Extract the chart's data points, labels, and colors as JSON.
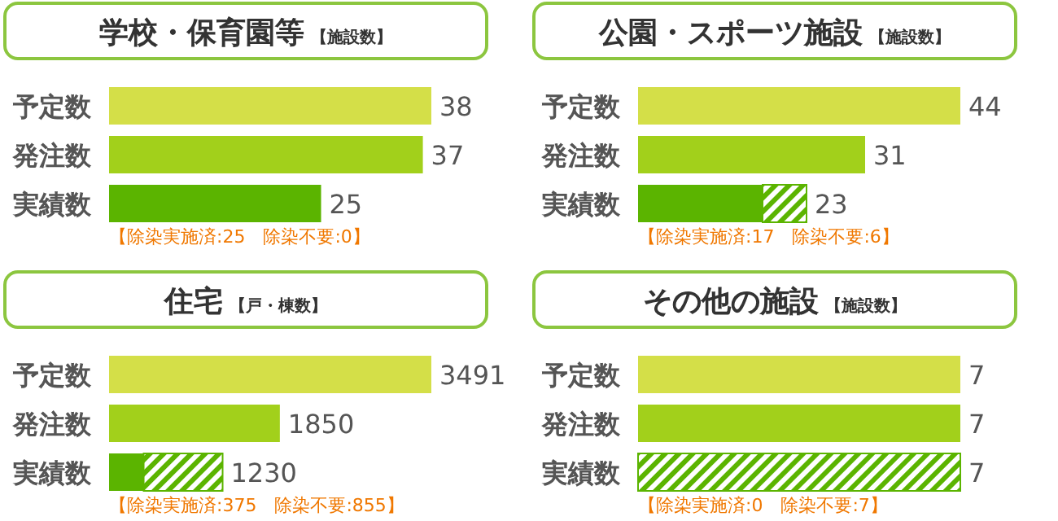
{
  "chart_data": [
    {
      "type": "bar",
      "orientation": "horizontal",
      "stacked": true,
      "title": "学校・保育園等",
      "subtitle": "【施設数】",
      "categories": [
        "予定数",
        "発注数",
        "実績数"
      ],
      "series": [
        {
          "color": "#d4df48",
          "values": [
            38,
            null,
            null
          ],
          "value_labels": [
            "38",
            null,
            null
          ]
        },
        {
          "color": "#a2d01b",
          "values": [
            null,
            37,
            null
          ],
          "value_labels": [
            null,
            "37",
            null
          ]
        },
        {
          "color": "#5bb400",
          "values": [
            null,
            null,
            25
          ]
        },
        {
          "color": "#5bb400",
          "values": [
            null,
            null,
            0
          ]
        }
      ],
      "totals": [
        null,
        null,
        "25"
      ],
      "annotations": [
        "【除染実施済:25　除染不要:0】"
      ]
    },
    {
      "type": "bar",
      "orientation": "horizontal",
      "stacked": true,
      "title": "公園・スポーツ施設",
      "subtitle": "【施設数】",
      "categories": [
        "予定数",
        "発注数",
        "実績数"
      ],
      "series": [
        {
          "color": "#d4df48",
          "values": [
            44,
            null,
            null
          ],
          "value_labels": [
            "44",
            null,
            null
          ]
        },
        {
          "color": "#a2d01b",
          "values": [
            null,
            31,
            null
          ],
          "value_labels": [
            null,
            "31",
            null
          ]
        },
        {
          "color": "#5bb400",
          "values": [
            null,
            null,
            17
          ]
        },
        {
          "color": "#5bb400",
          "values": [
            null,
            null,
            6
          ]
        }
      ],
      "totals": [
        null,
        null,
        "23"
      ],
      "annotations": [
        "【除染実施済:17　除染不要:6】"
      ]
    },
    {
      "type": "bar",
      "orientation": "horizontal",
      "stacked": true,
      "title": "住宅",
      "subtitle": "【戸・棟数】",
      "categories": [
        "予定数",
        "発注数",
        "実績数"
      ],
      "series": [
        {
          "color": "#d4df48",
          "values": [
            3491,
            null,
            null
          ],
          "value_labels": [
            "3491",
            null,
            null
          ]
        },
        {
          "color": "#a2d01b",
          "values": [
            null,
            1850,
            null
          ],
          "value_labels": [
            null,
            "1850",
            null
          ]
        },
        {
          "color": "#5bb400",
          "values": [
            null,
            null,
            375
          ]
        },
        {
          "color": "#5bb400",
          "values": [
            null,
            null,
            855
          ]
        }
      ],
      "totals": [
        null,
        null,
        "1230"
      ],
      "annotations": [
        "【除染実施済:375　除染不要:855】"
      ]
    },
    {
      "type": "bar",
      "orientation": "horizontal",
      "stacked": true,
      "title": "その他の施設",
      "subtitle": "【施設数】",
      "categories": [
        "予定数",
        "発注数",
        "実績数"
      ],
      "series": [
        {
          "color": "#d4df48",
          "values": [
            7,
            null,
            null
          ],
          "value_labels": [
            "7",
            null,
            null
          ]
        },
        {
          "color": "#a2d01b",
          "values": [
            null,
            7,
            null
          ],
          "value_labels": [
            null,
            "7",
            null
          ]
        },
        {
          "color": "#5bb400",
          "values": [
            null,
            null,
            0
          ]
        },
        {
          "color": "#5bb400",
          "values": [
            null,
            null,
            7
          ]
        }
      ],
      "totals": [
        null,
        null,
        "7"
      ],
      "annotations": [
        "【除染実施済:0　除染不要:7】"
      ]
    }
  ]
}
